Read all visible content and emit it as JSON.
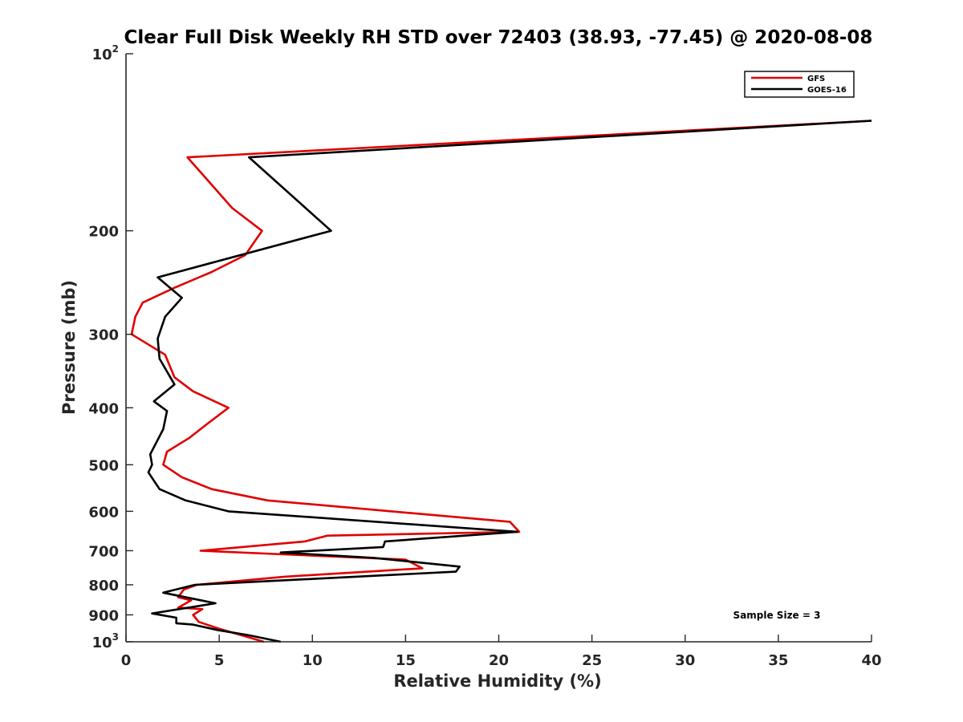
{
  "chart_data": {
    "type": "line",
    "title": "Clear Full Disk Weekly RH STD over 72403 (38.93, -77.45) @ 2020-08-08",
    "xlabel": "Relative Humidity (%)",
    "ylabel": "Pressure (mb)",
    "xlim": [
      0,
      40
    ],
    "ylim": [
      100,
      1000
    ],
    "yscale": "log",
    "y_reversed": true,
    "grid": false,
    "legend_position": "top-right",
    "x_ticks": [
      "0",
      "5",
      "10",
      "15",
      "20",
      "25",
      "30",
      "35",
      "40"
    ],
    "y_ticks": [
      {
        "value": 100,
        "base": "10",
        "exp": "2"
      },
      {
        "value": 200,
        "label": "200"
      },
      {
        "value": 300,
        "label": "300"
      },
      {
        "value": 400,
        "label": "400"
      },
      {
        "value": 500,
        "label": "500"
      },
      {
        "value": 600,
        "label": "600"
      },
      {
        "value": 700,
        "label": "700"
      },
      {
        "value": 800,
        "label": "800"
      },
      {
        "value": 900,
        "label": "900"
      },
      {
        "value": 1000,
        "base": "10",
        "exp": "3"
      }
    ],
    "annotation": "Sample Size = 3",
    "series": [
      {
        "name": "GFS",
        "color": "#e00000",
        "points": [
          [
            40.0,
            130
          ],
          [
            3.3,
            150
          ],
          [
            5.7,
            183
          ],
          [
            7.3,
            200
          ],
          [
            6.4,
            220
          ],
          [
            4.6,
            235
          ],
          [
            2.6,
            250
          ],
          [
            0.9,
            265
          ],
          [
            0.5,
            280
          ],
          [
            0.4,
            290
          ],
          [
            0.3,
            300
          ],
          [
            2.1,
            325
          ],
          [
            2.6,
            355
          ],
          [
            3.6,
            375
          ],
          [
            5.5,
            400
          ],
          [
            4.4,
            425
          ],
          [
            3.4,
            450
          ],
          [
            2.2,
            475
          ],
          [
            2.0,
            500
          ],
          [
            3.0,
            525
          ],
          [
            4.6,
            550
          ],
          [
            7.6,
            575
          ],
          [
            20.6,
            625
          ],
          [
            21.1,
            650
          ],
          [
            10.8,
            660
          ],
          [
            9.6,
            675
          ],
          [
            4.0,
            700
          ],
          [
            15.0,
            725
          ],
          [
            15.9,
            750
          ],
          [
            8.5,
            775
          ],
          [
            3.8,
            800
          ],
          [
            3.1,
            815
          ],
          [
            2.8,
            840
          ],
          [
            3.5,
            850
          ],
          [
            2.8,
            875
          ],
          [
            4.1,
            880
          ],
          [
            3.6,
            900
          ],
          [
            3.9,
            925
          ],
          [
            5.0,
            950
          ],
          [
            7.4,
            1000
          ]
        ]
      },
      {
        "name": "GOES-16",
        "color": "#000000",
        "points": [
          [
            40.0,
            130
          ],
          [
            6.6,
            150
          ],
          [
            11.0,
            200
          ],
          [
            1.7,
            240
          ],
          [
            3.0,
            260
          ],
          [
            2.1,
            280
          ],
          [
            1.7,
            305
          ],
          [
            1.8,
            330
          ],
          [
            2.6,
            365
          ],
          [
            1.5,
            390
          ],
          [
            2.2,
            405
          ],
          [
            2.0,
            435
          ],
          [
            1.3,
            480
          ],
          [
            1.4,
            500
          ],
          [
            1.2,
            515
          ],
          [
            1.8,
            550
          ],
          [
            3.2,
            575
          ],
          [
            5.5,
            600
          ],
          [
            21.0,
            650
          ],
          [
            13.9,
            675
          ],
          [
            13.8,
            690
          ],
          [
            8.3,
            705
          ],
          [
            13.3,
            720
          ],
          [
            17.9,
            745
          ],
          [
            17.7,
            760
          ],
          [
            3.7,
            800
          ],
          [
            2.0,
            825
          ],
          [
            4.8,
            860
          ],
          [
            1.4,
            895
          ],
          [
            2.7,
            910
          ],
          [
            2.7,
            930
          ],
          [
            3.6,
            935
          ],
          [
            4.9,
            955
          ],
          [
            6.6,
            975
          ],
          [
            8.3,
            1000
          ]
        ]
      }
    ]
  }
}
